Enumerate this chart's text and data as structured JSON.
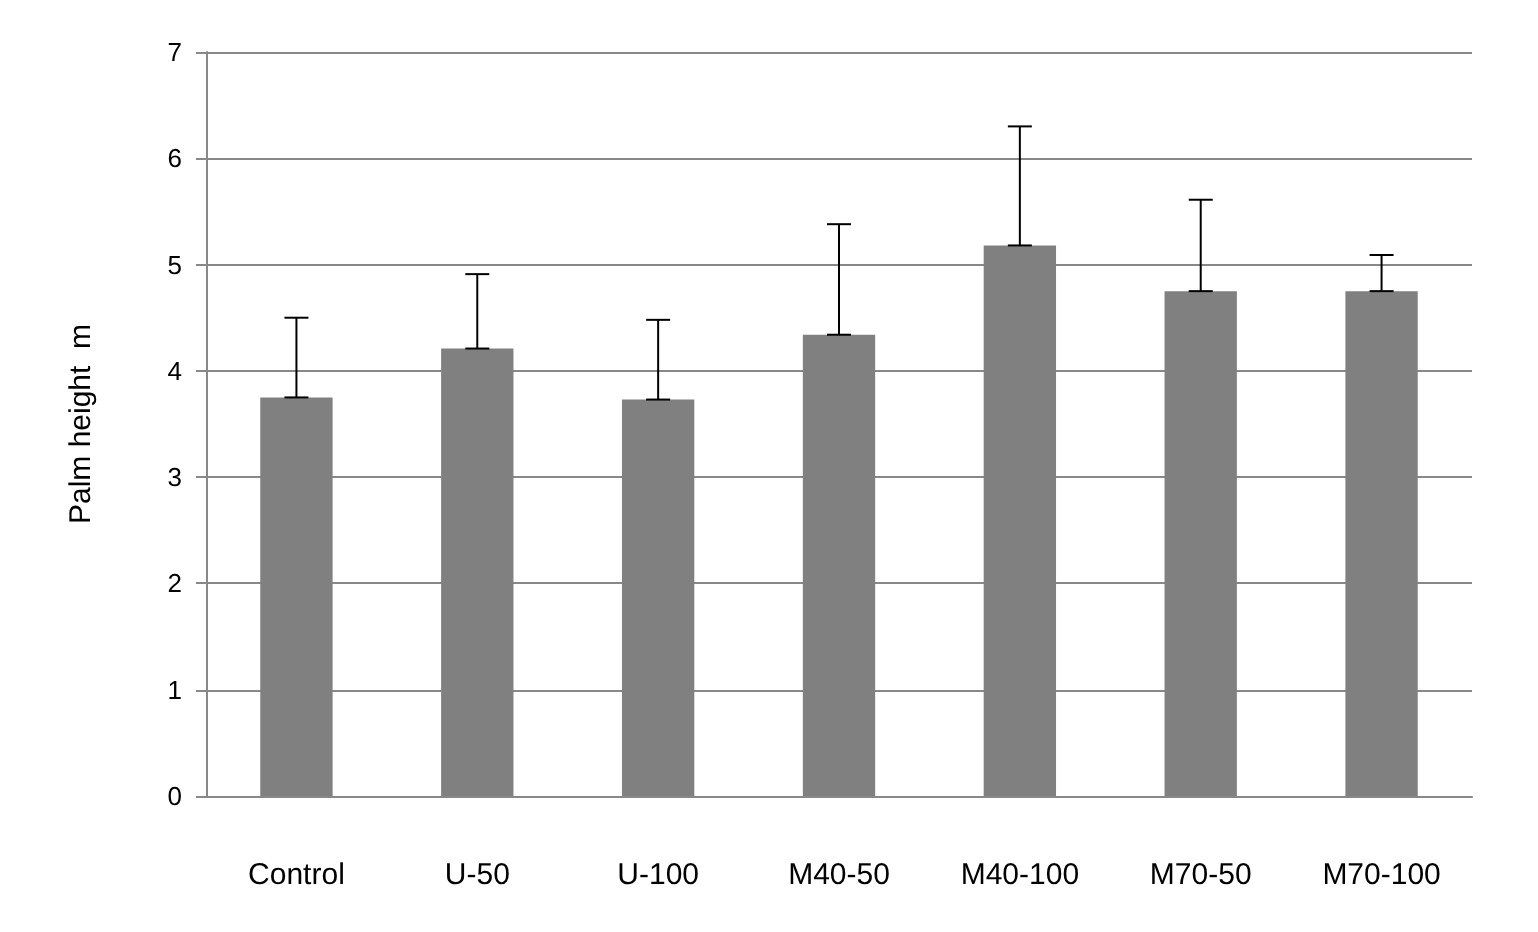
{
  "chart_data": {
    "type": "bar",
    "ylabel": "Palm height  m",
    "categories": [
      "Control",
      "U-50",
      "U-100",
      "M40-50",
      "M40-100",
      "M70-50",
      "M70-100"
    ],
    "values": [
      3.75,
      4.21,
      3.73,
      4.34,
      5.18,
      4.75,
      4.75
    ],
    "errors": [
      [
        3.75,
        4.5
      ],
      [
        4.21,
        4.91
      ],
      [
        3.73,
        4.48
      ],
      [
        4.34,
        5.38
      ],
      [
        5.18,
        6.3
      ],
      [
        4.75,
        5.61
      ],
      [
        4.75,
        5.09
      ]
    ],
    "color": "#808080",
    "ylim": [
      0,
      7
    ],
    "yticks": [
      0,
      1,
      2,
      3,
      4,
      5,
      6,
      7
    ],
    "grid": "y"
  }
}
